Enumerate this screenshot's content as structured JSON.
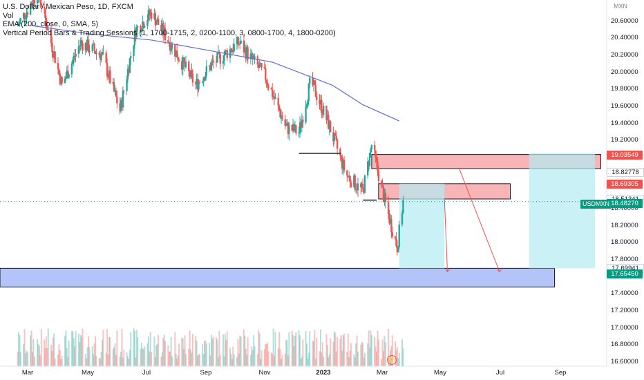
{
  "legend": {
    "title": "U.S. Dollar / Mexican Peso, 1D, FXCM",
    "vol": "Vol",
    "ema": "EMA (200, close, 0, SMA, 5)",
    "sessions": "Vertical Period Bars & Trading Sessions (1, 1700-1715, 2, 0200-1100, 3, 0800-1700, 4, 1800-0200)"
  },
  "currency": "MXN",
  "symbol_badge": "USDMXN",
  "colors": {
    "up": "#26a69a",
    "down": "#ef5350",
    "ema": "#5b6fd6",
    "red_zone": "#f7a8ac",
    "blue_zone": "#a7b8f7",
    "cyan_zone": "#b2ebf2",
    "tag_red": "#ef5350",
    "tag_teal": "#089981"
  },
  "price_ticks": [
    "20.60000",
    "20.40000",
    "20.20000",
    "20.00000",
    "19.80000",
    "19.60000",
    "19.40000",
    "19.20000",
    "18.40000",
    "18.20000",
    "18.00000",
    "17.80000",
    "17.40000",
    "17.20000",
    "17.00000",
    "16.80000",
    "16.60000"
  ],
  "price_tags": [
    {
      "text": "19.03549",
      "kind": "red"
    },
    {
      "text": "18.82778",
      "kind": "white"
    },
    {
      "text": "18.69305",
      "kind": "red"
    },
    {
      "text": "18.51341",
      "kind": "white"
    },
    {
      "text": "18.48270",
      "kind": "teal"
    },
    {
      "text": "17.69941",
      "kind": "white"
    },
    {
      "text": "17.65450",
      "kind": "teal"
    }
  ],
  "time_labels": [
    "Mar",
    "May",
    "Jul",
    "Sep",
    "Nov",
    "2023",
    "Mar",
    "May",
    "Jul",
    "Sep"
  ],
  "chart_data": {
    "type": "candlestick",
    "title": "U.S. Dollar / Mexican Peso, 1D, FXCM",
    "ylim": [
      16.55,
      20.85
    ],
    "x_range": [
      "Feb 2022",
      "Oct 2023"
    ],
    "last_price": 18.4827,
    "ema_200_approx": [
      {
        "date": "2022-03-01",
        "value": 20.55
      },
      {
        "date": "2022-05-01",
        "value": 20.45
      },
      {
        "date": "2022-07-01",
        "value": 20.38
      },
      {
        "date": "2022-09-01",
        "value": 20.25
      },
      {
        "date": "2022-11-01",
        "value": 20.12
      },
      {
        "date": "2023-01-01",
        "value": 19.85
      },
      {
        "date": "2023-02-01",
        "value": 19.62
      },
      {
        "date": "2023-03-10",
        "value": 19.43
      }
    ],
    "close_approx": [
      {
        "date": "2022-02-15",
        "value": 20.55
      },
      {
        "date": "2022-03-08",
        "value": 20.95
      },
      {
        "date": "2022-04-01",
        "value": 19.85
      },
      {
        "date": "2022-04-20",
        "value": 20.35
      },
      {
        "date": "2022-05-12",
        "value": 20.2
      },
      {
        "date": "2022-05-30",
        "value": 19.55
      },
      {
        "date": "2022-06-15",
        "value": 20.5
      },
      {
        "date": "2022-07-01",
        "value": 20.7
      },
      {
        "date": "2022-07-25",
        "value": 20.25
      },
      {
        "date": "2022-08-15",
        "value": 19.85
      },
      {
        "date": "2022-09-01",
        "value": 20.1
      },
      {
        "date": "2022-09-28",
        "value": 20.35
      },
      {
        "date": "2022-10-25",
        "value": 19.95
      },
      {
        "date": "2022-11-15",
        "value": 19.35
      },
      {
        "date": "2022-11-28",
        "value": 19.3
      },
      {
        "date": "2022-12-10",
        "value": 19.9
      },
      {
        "date": "2022-12-28",
        "value": 19.4
      },
      {
        "date": "2023-01-15",
        "value": 18.8
      },
      {
        "date": "2023-02-01",
        "value": 18.6
      },
      {
        "date": "2023-02-10",
        "value": 19.15
      },
      {
        "date": "2023-02-24",
        "value": 18.45
      },
      {
        "date": "2023-03-08",
        "value": 17.95
      },
      {
        "date": "2023-03-14",
        "value": 18.48
      }
    ],
    "levels": [
      {
        "name": "horizontal-line-1",
        "price": 19.05,
        "from": "2022-11-28",
        "to": "2023-01-10"
      },
      {
        "name": "horizontal-line-2",
        "price": 18.5,
        "from": "2023-02-01",
        "to": "2023-02-15"
      }
    ],
    "zones": [
      {
        "name": "red-zone-upper",
        "top": 19.03549,
        "bottom": 18.87,
        "from": "2023-02-10",
        "to": "2023-10-01"
      },
      {
        "name": "red-zone-lower",
        "top": 18.69305,
        "bottom": 18.51341,
        "from": "2023-02-17",
        "to": "2023-07-01"
      },
      {
        "name": "blue-zone",
        "top": 17.69941,
        "bottom": 17.48,
        "from": "2022-01-01",
        "to": "2023-08-15"
      },
      {
        "name": "cyan-zone-1",
        "top": 18.69305,
        "bottom": 17.69941,
        "from": "2023-03-10",
        "to": "2023-04-25"
      },
      {
        "name": "cyan-zone-2",
        "top": 19.05,
        "bottom": 17.69941,
        "from": "2023-07-20",
        "to": "2023-09-25"
      }
    ],
    "projections": [
      {
        "from": {
          "date": "2023-04-25",
          "price": 18.52
        },
        "to": {
          "date": "2023-04-28",
          "price": 17.66
        }
      },
      {
        "from": {
          "date": "2023-05-10",
          "price": 18.87
        },
        "to": {
          "date": "2023-06-20",
          "price": 17.66
        }
      }
    ]
  }
}
